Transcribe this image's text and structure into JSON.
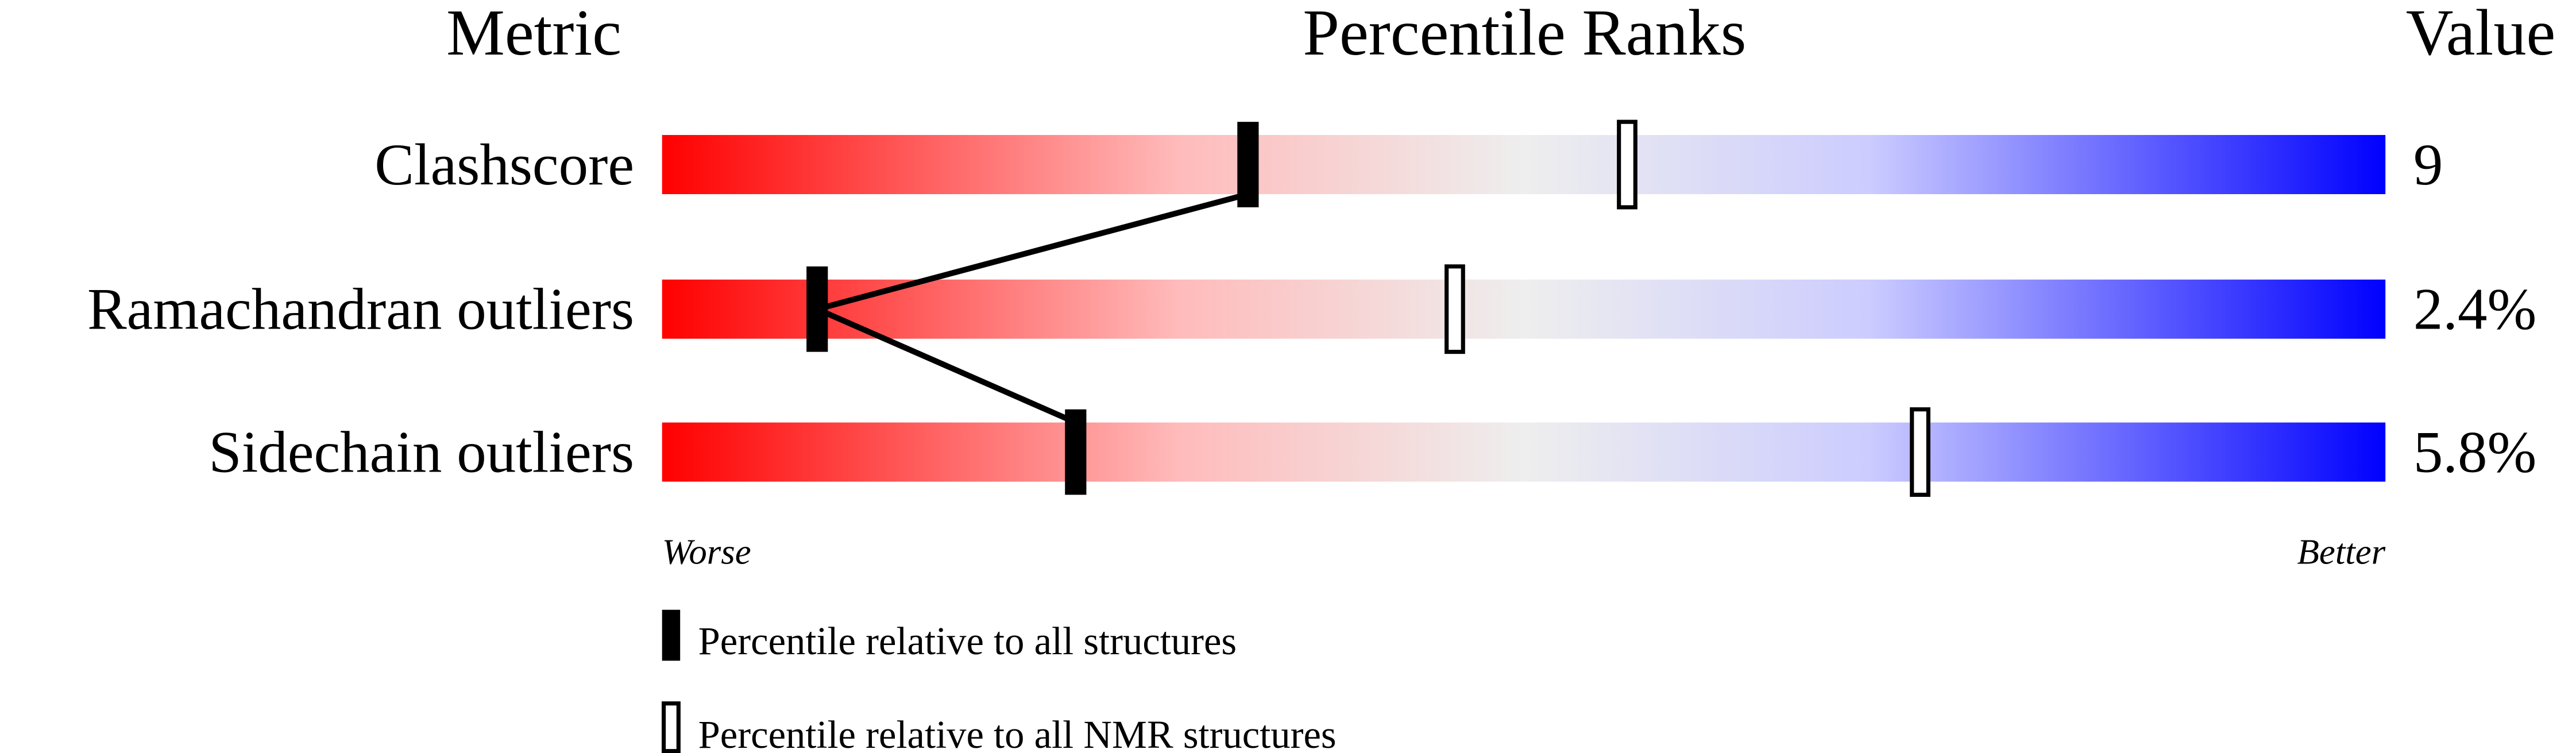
{
  "chart_data": {
    "type": "bar",
    "headers": {
      "metric": "Metric",
      "ranks": "Percentile Ranks",
      "value": "Value"
    },
    "xlim": [
      0,
      100
    ],
    "axis_labels": {
      "left": "Worse",
      "right": "Better"
    },
    "gradient_colors": [
      "#ff0000",
      "#eeeeee",
      "#0000ff"
    ],
    "metrics": [
      {
        "name": "Clashscore",
        "value": "9",
        "percentile_all": 34,
        "percentile_nmr": 56
      },
      {
        "name": "Ramachandran outliers",
        "value": "2.4%",
        "percentile_all": 9,
        "percentile_nmr": 46
      },
      {
        "name": "Sidechain outliers",
        "value": "5.8%",
        "percentile_all": 24,
        "percentile_nmr": 73
      }
    ],
    "legend": [
      {
        "marker": "filled",
        "label": "Percentile relative to all structures"
      },
      {
        "marker": "open",
        "label": "Percentile relative to all NMR structures"
      }
    ]
  }
}
